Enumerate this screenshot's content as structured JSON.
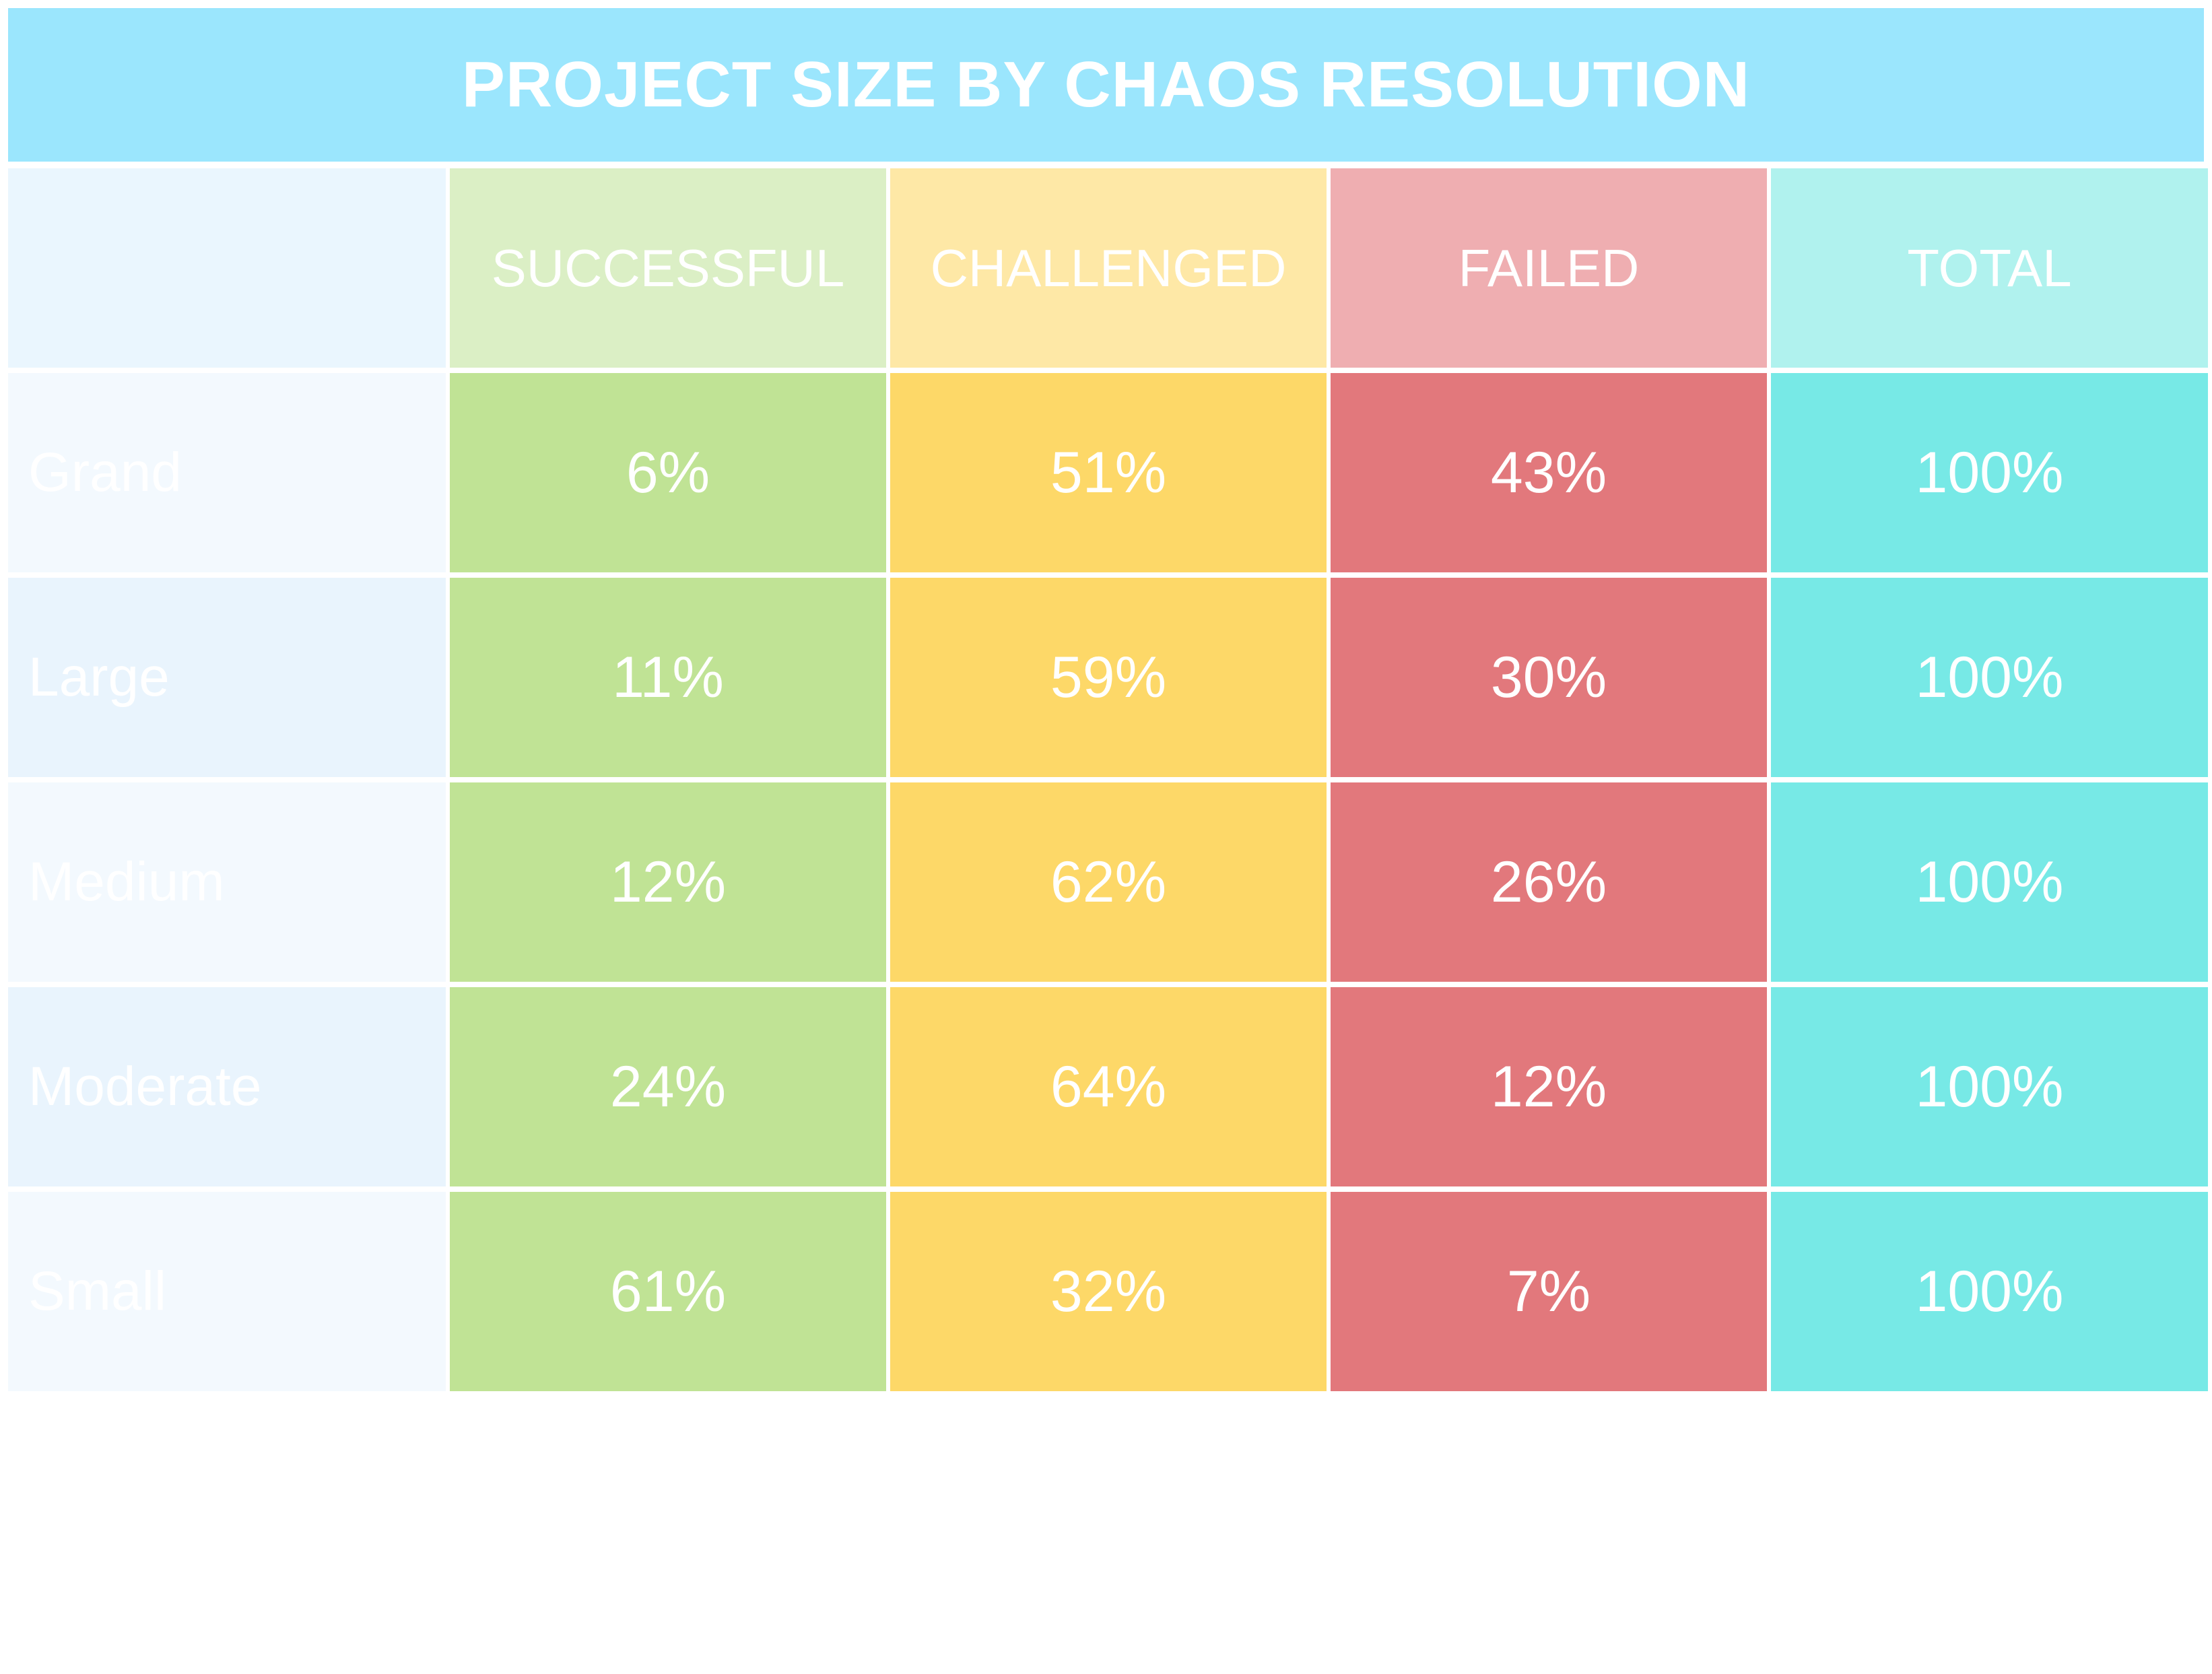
{
  "title": "PROJECT SIZE BY CHAOS RESOLUTION",
  "colors": {
    "title_bg": "#9be6fd",
    "successful_header": "#dbefc5",
    "challenged_header": "#fee8a6",
    "failed_header": "#efaeb1",
    "total_header": "#b0f2ee",
    "successful": "#c0e395",
    "challenged": "#fdd868",
    "failed": "#e2787c",
    "total": "#77e9e6"
  },
  "chart_data": {
    "type": "table",
    "title": "PROJECT SIZE BY CHAOS RESOLUTION",
    "columns": [
      "SUCCESSFUL",
      "CHALLENGED",
      "FAILED",
      "TOTAL"
    ],
    "rows": [
      {
        "label": "Grand",
        "values": [
          "6%",
          "51%",
          "43%",
          "100%"
        ]
      },
      {
        "label": "Large",
        "values": [
          "11%",
          "59%",
          "30%",
          "100%"
        ]
      },
      {
        "label": "Medium",
        "values": [
          "12%",
          "62%",
          "26%",
          "100%"
        ]
      },
      {
        "label": "Moderate",
        "values": [
          "24%",
          "64%",
          "12%",
          "100%"
        ]
      },
      {
        "label": "Small",
        "values": [
          "61%",
          "32%",
          "7%",
          "100%"
        ]
      }
    ]
  }
}
